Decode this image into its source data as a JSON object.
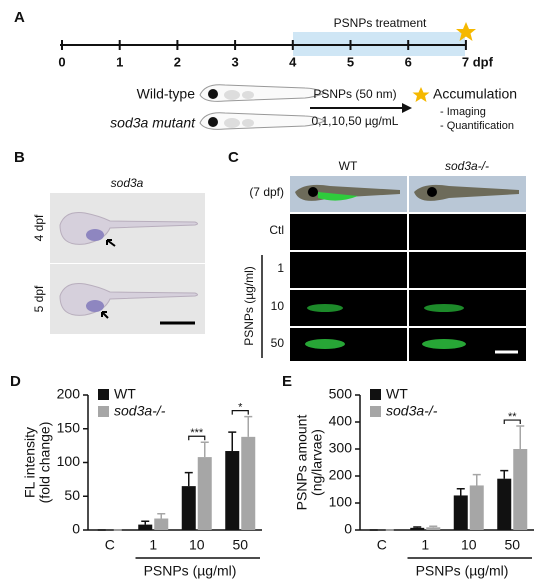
{
  "panel_a": {
    "label": "A",
    "treatment": "PSNPs treatment",
    "timeline_ticks": [
      "0",
      "1",
      "2",
      "3",
      "4",
      "5",
      "6",
      "7 dpf"
    ],
    "wild_type": "Wild-type",
    "mutant": "sod3a mutant",
    "dose": "PSNPs (50 nm)",
    "concentrations": "0,1,10,50 µg/mL",
    "accumulation": "Accumulation",
    "bullets": [
      "- Imaging",
      "- Quantification"
    ]
  },
  "panel_b": {
    "label": "B",
    "gene": "sod3a",
    "rows": [
      "4 dpf",
      "5 dpf"
    ]
  },
  "panel_c": {
    "label": "C",
    "columns": [
      "WT",
      "sod3a-/-"
    ],
    "rows": [
      "(7 dpf)",
      "Ctl",
      "1",
      "10",
      "50"
    ],
    "axis_label": "PSNPs (µg/ml)"
  },
  "chart_data": [
    {
      "type": "bar",
      "panel": "D",
      "ylabel": [
        "FL intensity",
        "(fold change)"
      ],
      "xlabel": "PSNPs (µg/ml)",
      "categories": [
        "C",
        "1",
        "10",
        "50"
      ],
      "ylim": [
        0,
        200
      ],
      "yticks": [
        0,
        50,
        100,
        150,
        200
      ],
      "series": [
        {
          "name": "WT",
          "color": "#111111",
          "values": [
            0,
            8,
            65,
            117
          ],
          "errors": [
            0,
            5,
            20,
            28
          ]
        },
        {
          "name": "sod3a-/-",
          "color": "#a6a6a6",
          "values": [
            0,
            17,
            108,
            138
          ],
          "errors": [
            0,
            7,
            22,
            30
          ]
        }
      ],
      "significance": [
        {
          "category": "10",
          "label": "***"
        },
        {
          "category": "50",
          "label": "*"
        }
      ]
    },
    {
      "type": "bar",
      "panel": "E",
      "ylabel": [
        "PSNPs amount",
        "(ng/larvae)"
      ],
      "xlabel": "PSNPs (µg/ml)",
      "categories": [
        "C",
        "1",
        "10",
        "50"
      ],
      "ylim": [
        0,
        500
      ],
      "yticks": [
        0,
        100,
        200,
        300,
        400,
        500
      ],
      "series": [
        {
          "name": "WT",
          "color": "#111111",
          "values": [
            0,
            8,
            128,
            190
          ],
          "errors": [
            0,
            3,
            25,
            30
          ]
        },
        {
          "name": "sod3a-/-",
          "color": "#a6a6a6",
          "values": [
            0,
            10,
            165,
            300
          ],
          "errors": [
            0,
            4,
            40,
            85
          ]
        }
      ],
      "significance": [
        {
          "category": "50",
          "label": "**"
        }
      ]
    }
  ]
}
